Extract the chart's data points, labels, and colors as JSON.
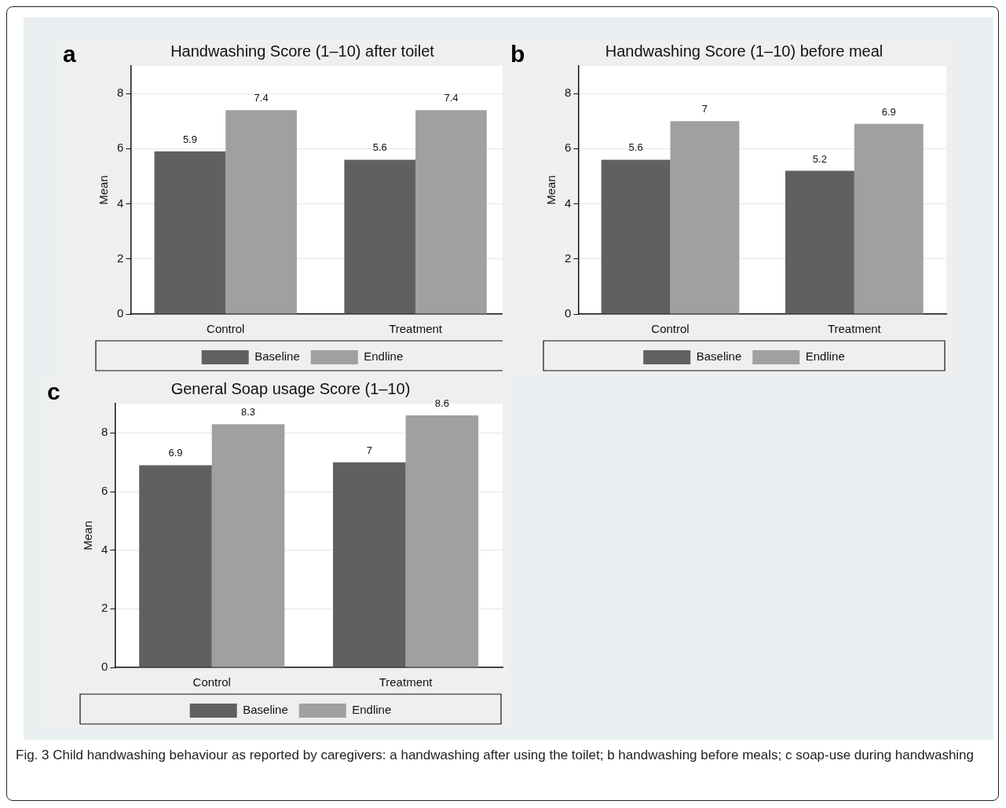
{
  "chart_data": [
    {
      "type": "bar",
      "title": "Handwashing Score (1–10) after toilet",
      "ylabel": "Mean",
      "categories": [
        "Control",
        "Treatment"
      ],
      "series": [
        {
          "name": "Baseline",
          "color": "#606060",
          "values": [
            5.9,
            5.6
          ]
        },
        {
          "name": "Endline",
          "color": "#a0a0a0",
          "values": [
            7.4,
            7.4
          ]
        }
      ],
      "ylim": [
        0,
        9
      ],
      "yticks": [
        0,
        2,
        4,
        6,
        8
      ],
      "grid": "y",
      "legend": "bottom",
      "data_labels": true,
      "annotations": [
        "a"
      ]
    },
    {
      "type": "bar",
      "title": "Handwashing Score (1–10) before meal",
      "ylabel": "Mean",
      "categories": [
        "Control",
        "Treatment"
      ],
      "series": [
        {
          "name": "Baseline",
          "color": "#606060",
          "values": [
            5.6,
            5.2
          ]
        },
        {
          "name": "Endline",
          "color": "#a0a0a0",
          "values": [
            7,
            6.9
          ]
        }
      ],
      "ylim": [
        0,
        9
      ],
      "yticks": [
        0,
        2,
        4,
        6,
        8
      ],
      "grid": "y",
      "legend": "bottom",
      "data_labels": true,
      "annotations": [
        "b"
      ]
    },
    {
      "type": "bar",
      "title": "General Soap usage Score (1–10)",
      "ylabel": "Mean",
      "categories": [
        "Control",
        "Treatment"
      ],
      "series": [
        {
          "name": "Baseline",
          "color": "#606060",
          "values": [
            6.9,
            7
          ]
        },
        {
          "name": "Endline",
          "color": "#a0a0a0",
          "values": [
            8.3,
            8.6
          ]
        }
      ],
      "ylim": [
        0,
        9
      ],
      "yticks": [
        0,
        2,
        4,
        6,
        8
      ],
      "grid": "y",
      "legend": "bottom",
      "data_labels": true,
      "annotations": [
        "c",
        "Fig. 3 Child handwashing behaviour as reported by caregivers: a handwashing after using the toilet; b handwashing before meals; c soap-use during handwashing"
      ]
    }
  ]
}
